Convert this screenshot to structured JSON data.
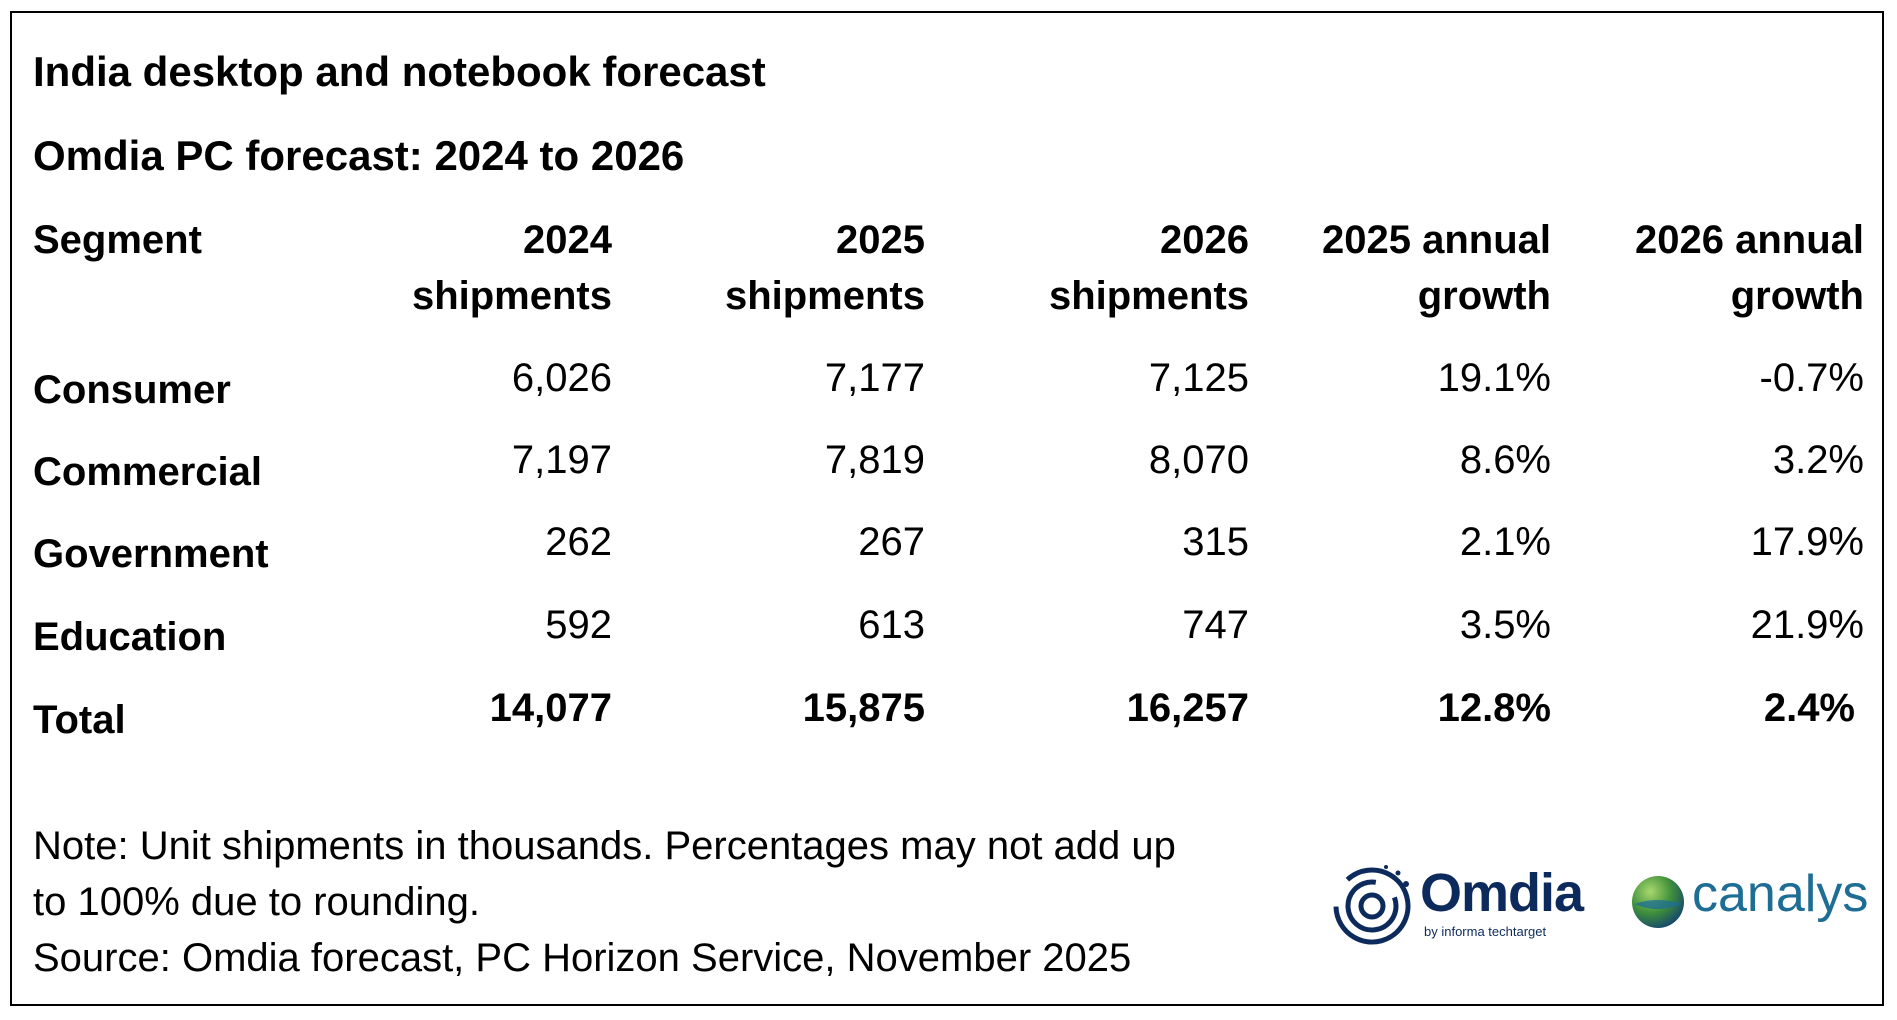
{
  "title": "India desktop and notebook forecast",
  "subtitle": "Omdia PC forecast: 2024 to 2026",
  "table": {
    "headers": {
      "segment": "Segment",
      "col1": [
        "2024",
        "shipments"
      ],
      "col2": [
        "2025",
        "shipments"
      ],
      "col3": [
        "2026",
        "shipments"
      ],
      "col4": [
        "2025 annual",
        "growth"
      ],
      "col5": [
        "2026 annual",
        "growth"
      ]
    },
    "rows": [
      {
        "segment": "Consumer",
        "v2024": "6,026",
        "v2025": "7,177",
        "v2026": "7,125",
        "g2025": "19.1%",
        "g2026": "-0.7%"
      },
      {
        "segment": "Commercial",
        "v2024": "7,197",
        "v2025": "7,819",
        "v2026": "8,070",
        "g2025": "8.6%",
        "g2026": "3.2%"
      },
      {
        "segment": "Government",
        "v2024": "262",
        "v2025": "267",
        "v2026": "315",
        "g2025": "2.1%",
        "g2026": "17.9%"
      },
      {
        "segment": "Education",
        "v2024": "592",
        "v2025": "613",
        "v2026": "747",
        "g2025": "3.5%",
        "g2026": "21.9%"
      }
    ],
    "total": {
      "segment": "Total",
      "v2024": "14,077",
      "v2025": "15,875",
      "v2026": "16,257",
      "g2025": "12.8%",
      "g2026": "2.4%"
    }
  },
  "notes": {
    "line1": "Note: Unit shipments in thousands. Percentages may not add up",
    "line2": "to 100% due to rounding.",
    "source": "Source: Omdia forecast, PC Horizon Service, November 2025"
  },
  "logos": {
    "omdia": "Omdia",
    "omdia_sub": "by informa techtarget",
    "canalys": "canalys"
  },
  "colors": {
    "omdia_navy": "#0d2a5c",
    "canalys_blue": "#1e6d94",
    "canalys_green": "#5aa02c"
  }
}
